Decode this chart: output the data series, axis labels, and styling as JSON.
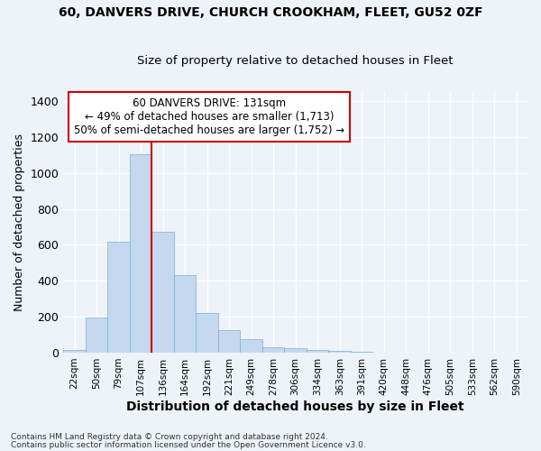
{
  "title_line1": "60, DANVERS DRIVE, CHURCH CROOKHAM, FLEET, GU52 0ZF",
  "title_line2": "Size of property relative to detached houses in Fleet",
  "xlabel": "Distribution of detached houses by size in Fleet",
  "ylabel": "Number of detached properties",
  "bar_color": "#c5d8f0",
  "bar_edge_color": "#7bafd4",
  "bg_color": "#eef2f9",
  "grid_color": "#ffffff",
  "categories": [
    "22sqm",
    "50sqm",
    "79sqm",
    "107sqm",
    "136sqm",
    "164sqm",
    "192sqm",
    "221sqm",
    "249sqm",
    "278sqm",
    "306sqm",
    "334sqm",
    "363sqm",
    "391sqm",
    "420sqm",
    "448sqm",
    "476sqm",
    "505sqm",
    "533sqm",
    "562sqm",
    "590sqm"
  ],
  "values": [
    15,
    195,
    615,
    1105,
    670,
    430,
    220,
    125,
    75,
    30,
    25,
    15,
    10,
    5,
    0,
    0,
    0,
    0,
    0,
    0,
    0
  ],
  "ylim": [
    0,
    1450
  ],
  "yticks": [
    0,
    200,
    400,
    600,
    800,
    1000,
    1200,
    1400
  ],
  "vline_pos": 3.5,
  "annotation_title": "60 DANVERS DRIVE: 131sqm",
  "annotation_line1": "← 49% of detached houses are smaller (1,713)",
  "annotation_line2": "50% of semi-detached houses are larger (1,752) →",
  "annotation_box_color": "#ffffff",
  "annotation_border_color": "#cc0000",
  "vline_color": "#cc0000",
  "footer_line1": "Contains HM Land Registry data © Crown copyright and database right 2024.",
  "footer_line2": "Contains public sector information licensed under the Open Government Licence v3.0."
}
